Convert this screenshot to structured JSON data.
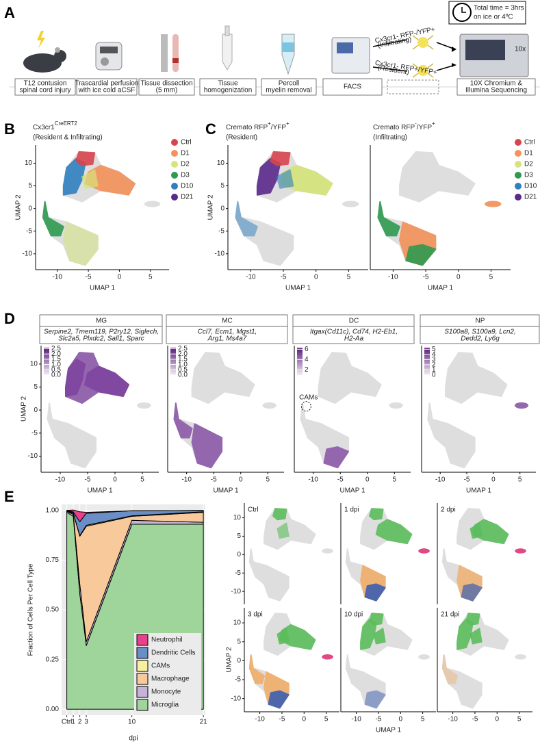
{
  "panel_labels": [
    "A",
    "B",
    "C",
    "D",
    "E"
  ],
  "workflow": {
    "timing": [
      "Total time = 3hrs",
      "on ice or 4ºC"
    ],
    "steps": [
      [
        "T12 contusion",
        "spinal cord injury"
      ],
      [
        "Trascardial perfusion",
        "with ice cold aCSF"
      ],
      [
        "Tissue dissection",
        "(5 mm)"
      ],
      [
        "Tissue",
        "homogenization"
      ],
      [
        "Percoll",
        "myelin removal"
      ],
      [
        "FACS"
      ],
      [
        "10X Chromium &",
        "Illumina Sequencing"
      ]
    ],
    "sort_labels": [
      "Cx3cr1- RFP-/YFP+",
      "(Infiltrating)",
      "Cx3cr1- RFP+/YFP+",
      "(Resident)"
    ],
    "instrument_logo": "10x"
  },
  "umap": {
    "xlabel": "UMAP 1",
    "ylabel": "UMAP 2",
    "xlim": [
      -13.5,
      8
    ],
    "ylim": [
      -13.5,
      14
    ],
    "xticks": [
      -10,
      -5,
      0,
      5
    ],
    "yticks": [
      -10,
      -5,
      0,
      5,
      10
    ]
  },
  "timepoints": {
    "names": [
      "Ctrl",
      "D1",
      "D2",
      "D3",
      "D10",
      "D21"
    ],
    "colors": [
      "#d8444d",
      "#f4925a",
      "#d6e47a",
      "#2f9a50",
      "#2f80c0",
      "#5b2a8c"
    ]
  },
  "panel_b": {
    "title": [
      {
        "text": "Cx3cr1"
      },
      {
        "text": "CreERT2",
        "sup": true
      }
    ],
    "subtitle": "(Resident & Infiltrating)"
  },
  "panel_c": [
    {
      "title": [
        {
          "text": "Cremato RFP"
        },
        {
          "text": "+",
          "sup": true
        },
        {
          "text": "/YFP"
        },
        {
          "text": "+",
          "sup": true
        }
      ],
      "subtitle": "(Resident)"
    },
    {
      "title": [
        {
          "text": "Cremato RFP"
        },
        {
          "text": "-",
          "sup": true
        },
        {
          "text": "/YFP"
        },
        {
          "text": "+",
          "sup": true
        }
      ],
      "subtitle": "(Infiltrating)"
    }
  ],
  "panel_d": [
    {
      "title": "MG",
      "genes": [
        "Serpine2, Tmem119, P2ry12, Siglech,",
        "Slc2a5, Plxdc2, Sall1, Sparc"
      ],
      "colorbar": {
        "lim": [
          0,
          2.6
        ],
        "ticks": [
          2.5,
          {
            "value": 2,
            "label": "2.0"
          },
          1.5,
          {
            "value": 1,
            "label": "1.0"
          },
          0.5,
          {
            "value": 0,
            "label": "0.0"
          }
        ]
      }
    },
    {
      "title": "MC",
      "genes": [
        "Ccl7, Ecm1, Mgst1,",
        "Arg1, Ms4a7"
      ],
      "colorbar": {
        "lim": [
          0,
          2.6
        ],
        "ticks": [
          2.5,
          {
            "value": 2,
            "label": "2.0"
          },
          1.5,
          {
            "value": 1,
            "label": "1.0"
          },
          0.5,
          {
            "value": 0,
            "label": "0.0"
          }
        ]
      }
    },
    {
      "title": "DC",
      "genes": [
        "Itgax(Cd11c), Cd74, H2-Eb1,",
        "H2-Aa"
      ],
      "colorbar": {
        "lim": [
          1,
          6.3
        ],
        "ticks": [
          6,
          4,
          2
        ]
      },
      "annotation": "CAMs"
    },
    {
      "title": "NP",
      "genes": [
        "S100a8, S100a9, Lcn2,",
        "Dedd2, Ly6g"
      ],
      "colorbar": {
        "lim": [
          0,
          5.3
        ],
        "ticks": [
          5,
          4,
          3,
          2,
          1,
          0
        ]
      }
    }
  ],
  "chart_data": {
    "type": "stacked_area",
    "ylabel": "Fraction of Cells Per Cell Type",
    "xlabel": "dpi",
    "x": [
      0,
      1,
      2,
      3,
      10,
      21
    ],
    "xlim": [
      -0.8,
      21.3
    ],
    "ylim": [
      -0.03,
      1.03
    ],
    "xticks": [
      {
        "value": 0,
        "label": "Ctrl"
      },
      1,
      2,
      3,
      10,
      21
    ],
    "yticks": [
      {
        "value": 0,
        "label": "0.00"
      },
      {
        "value": 0.25,
        "label": "0.25"
      },
      {
        "value": 0.5,
        "label": "0.50"
      },
      {
        "value": 0.75,
        "label": "0.75"
      },
      {
        "value": 1,
        "label": "1.00"
      }
    ],
    "grid": true,
    "series": [
      {
        "name": "Microglia",
        "color": "#9fd49a",
        "values": [
          0.99,
          0.97,
          0.58,
          0.32,
          0.93,
          0.93
        ]
      },
      {
        "name": "Monocyte",
        "color": "#c6b4d8",
        "values": [
          0.005,
          0.01,
          0.05,
          0.02,
          0.02,
          0.01
        ]
      },
      {
        "name": "Macrophage",
        "color": "#f8c99a",
        "values": [
          0,
          0.005,
          0.24,
          0.58,
          0.02,
          0.05
        ]
      },
      {
        "name": "CAMs",
        "color": "#f7f0a0",
        "values": [
          0.003,
          0.002,
          0.003,
          0.005,
          0.003,
          0.003
        ]
      },
      {
        "name": "Dendritic Cells",
        "color": "#6a8fc7",
        "values": [
          0.002,
          0.005,
          0.07,
          0.06,
          0.025,
          0.007
        ]
      },
      {
        "name": "Neutrophil",
        "color": "#e8408a",
        "values": [
          0,
          0.01,
          0.05,
          0.005,
          0,
          0
        ]
      }
    ]
  },
  "panel_e_umaps": [
    "Ctrl",
    "1 dpi",
    "2 dpi",
    "3 dpi",
    "10 dpi",
    "21 dpi"
  ]
}
